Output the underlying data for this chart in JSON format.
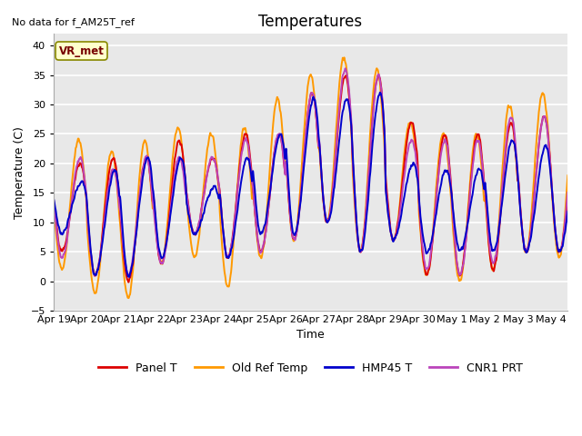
{
  "title": "Temperatures",
  "xlabel": "Time",
  "ylabel": "Temperature (C)",
  "ylim": [
    -5,
    42
  ],
  "xlim_start": 0,
  "xlim_end": 15.5,
  "background_color": "#e8e8e8",
  "grid_color": "#ffffff",
  "annotation_text": "No data for f_AM25T_ref",
  "vr_met_label": "VR_met",
  "series": {
    "panel_t": {
      "label": "Panel T",
      "color": "#dd0000",
      "lw": 1.4
    },
    "old_ref_temp": {
      "label": "Old Ref Temp",
      "color": "#ff9900",
      "lw": 1.4
    },
    "hmp45_t": {
      "label": "HMP45 T",
      "color": "#0000cc",
      "lw": 1.4
    },
    "cnr1_prt": {
      "label": "CNR1 PRT",
      "color": "#bb44bb",
      "lw": 1.4
    }
  },
  "tick_labels": [
    "Apr 19",
    "Apr 20",
    "Apr 21",
    "Apr 22",
    "Apr 23",
    "Apr 24",
    "Apr 25",
    "Apr 26",
    "Apr 27",
    "Apr 28",
    "Apr 29",
    "Apr 30",
    "May 1",
    "May 2",
    "May 3",
    "May 4"
  ],
  "tick_positions": [
    0,
    1,
    2,
    3,
    4,
    5,
    6,
    7,
    8,
    9,
    10,
    11,
    12,
    13,
    14,
    15
  ],
  "yticks": [
    -5,
    0,
    5,
    10,
    15,
    20,
    25,
    30,
    35,
    40
  ],
  "title_fontsize": 12,
  "label_fontsize": 9,
  "tick_fontsize": 8,
  "legend_fontsize": 9
}
